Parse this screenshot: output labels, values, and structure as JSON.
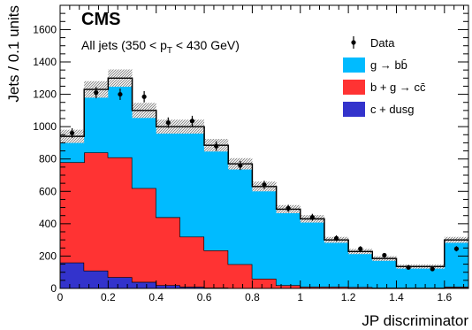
{
  "chart_data": {
    "type": "bar",
    "stacked": true,
    "experiment_label": "CMS",
    "subtitle_prefix": "All jets (350 < p",
    "subtitle_sub": "T",
    "subtitle_suffix": " < 430 GeV)",
    "xlabel": "JP discriminator",
    "ylabel": "Jets / 0.1 units",
    "xlim": [
      0,
      1.7
    ],
    "ylim": [
      0,
      1750
    ],
    "x_ticks": [
      0,
      0.2,
      0.4,
      0.6,
      0.8,
      1,
      1.2,
      1.4,
      1.6
    ],
    "x_tick_labels": [
      "0",
      "0.2",
      "0.4",
      "0.6",
      "0.8",
      "1",
      "1.2",
      "1.4",
      "1.6"
    ],
    "y_ticks": [
      0,
      200,
      400,
      600,
      800,
      1000,
      1200,
      1400,
      1600
    ],
    "y_tick_labels": [
      "0",
      "200",
      "400",
      "600",
      "800",
      "1000",
      "1200",
      "1400",
      "1600"
    ],
    "bin_edges": [
      0,
      0.1,
      0.2,
      0.3,
      0.4,
      0.5,
      0.6,
      0.7,
      0.8,
      0.9,
      1.0,
      1.1,
      1.2,
      1.3,
      1.4,
      1.5,
      1.6,
      1.7
    ],
    "series": [
      {
        "name": "c + dusg",
        "color": "#3333cc",
        "values": [
          160,
          110,
          70,
          40,
          20,
          10,
          5,
          3,
          2,
          1,
          1,
          1,
          0,
          0,
          0,
          0,
          5
        ]
      },
      {
        "name": "b + g → cc̄",
        "color": "#ff3333",
        "values": [
          620,
          730,
          740,
          580,
          420,
          310,
          230,
          147,
          58,
          19,
          9,
          9,
          8,
          5,
          5,
          5,
          5
        ]
      },
      {
        "name": "g → bb̄",
        "color": "#00bbff",
        "values": [
          160,
          390,
          490,
          480,
          560,
          680,
          650,
          620,
          570,
          470,
          420,
          290,
          220,
          180,
          130,
          130,
          290
        ]
      }
    ],
    "totals": [
      940,
      1230,
      1300,
      1100,
      1000,
      1000,
      885,
      770,
      630,
      490,
      430,
      300,
      228,
      185,
      135,
      135,
      300
    ],
    "data_series": {
      "name": "Data",
      "x": [
        0.05,
        0.15,
        0.25,
        0.35,
        0.45,
        0.55,
        0.65,
        0.75,
        0.85,
        0.95,
        1.05,
        1.15,
        1.25,
        1.35,
        1.45,
        1.55,
        1.65
      ],
      "y": [
        960,
        1210,
        1200,
        1185,
        1025,
        1035,
        880,
        760,
        640,
        495,
        440,
        310,
        245,
        205,
        130,
        120,
        245
      ],
      "err": [
        30,
        35,
        35,
        35,
        32,
        32,
        30,
        28,
        25,
        22,
        21,
        18,
        16,
        14,
        11,
        11,
        16
      ]
    },
    "legend": {
      "position": "top-right",
      "entries": [
        {
          "key": "data",
          "label": "Data"
        },
        {
          "key": "gbb",
          "label": "g → bb̄",
          "color": "#00bbff"
        },
        {
          "key": "bcc",
          "label": "b + g → cc̄",
          "color": "#ff3333"
        },
        {
          "key": "cdusg",
          "label": "c + dusg",
          "color": "#3333cc"
        }
      ]
    }
  }
}
